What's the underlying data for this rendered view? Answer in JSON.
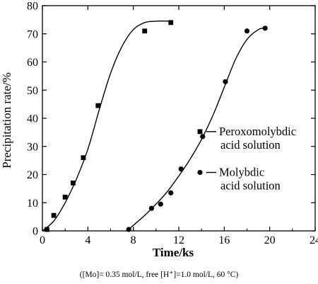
{
  "chart_data": {
    "type": "scatter",
    "xlabel": "Time/ks",
    "ylabel": "Precipitation rate/%",
    "xlim": [
      0,
      24
    ],
    "ylim": [
      0,
      80
    ],
    "xticks": [
      0,
      4,
      8,
      12,
      16,
      20,
      24
    ],
    "yticks": [
      0,
      10,
      20,
      30,
      40,
      50,
      60,
      70,
      80
    ],
    "grid": false,
    "legend_position": "right",
    "caption": "([Mo]= 0.35 mol/L, free [H⁺]=1.0 mol/L, 60 °C)",
    "series": [
      {
        "name_lines": [
          "Peroxomolybdic",
          "acid solution"
        ],
        "marker": "square",
        "points": [
          [
            0.4,
            0.5
          ],
          [
            1.0,
            5.5
          ],
          [
            2.0,
            12.0
          ],
          [
            2.7,
            17.0
          ],
          [
            3.6,
            26.0
          ],
          [
            4.9,
            44.5
          ],
          [
            9.0,
            71.0
          ],
          [
            11.3,
            74.0
          ]
        ],
        "fit_curve": [
          [
            0.0,
            0.0
          ],
          [
            1.0,
            3.5
          ],
          [
            2.0,
            10.0
          ],
          [
            3.0,
            18.5
          ],
          [
            4.0,
            29.0
          ],
          [
            5.0,
            43.0
          ],
          [
            6.0,
            56.0
          ],
          [
            7.0,
            65.5
          ],
          [
            8.0,
            71.5
          ],
          [
            9.0,
            74.0
          ],
          [
            10.0,
            74.5
          ],
          [
            11.3,
            74.5
          ]
        ]
      },
      {
        "name_lines": [
          "Molybdic",
          "acid solution"
        ],
        "marker": "circle",
        "points": [
          [
            7.6,
            0.5
          ],
          [
            9.6,
            8.0
          ],
          [
            10.4,
            9.5
          ],
          [
            11.3,
            13.5
          ],
          [
            12.2,
            22.0
          ],
          [
            14.1,
            33.5
          ],
          [
            16.1,
            53.0
          ],
          [
            18.0,
            71.0
          ],
          [
            19.6,
            72.0
          ]
        ],
        "fit_curve": [
          [
            7.4,
            0.0
          ],
          [
            8.0,
            2.0
          ],
          [
            9.0,
            5.5
          ],
          [
            10.0,
            9.5
          ],
          [
            11.0,
            14.0
          ],
          [
            12.0,
            19.5
          ],
          [
            13.0,
            25.5
          ],
          [
            14.0,
            32.5
          ],
          [
            15.0,
            41.0
          ],
          [
            16.0,
            51.0
          ],
          [
            17.0,
            61.0
          ],
          [
            18.0,
            68.0
          ],
          [
            19.0,
            71.5
          ],
          [
            19.6,
            72.0
          ]
        ]
      }
    ]
  }
}
